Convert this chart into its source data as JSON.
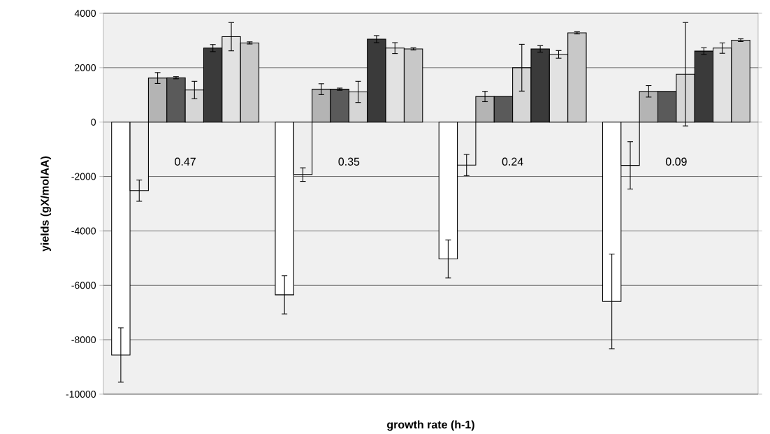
{
  "chart_data": {
    "type": "bar",
    "xlabel": "growth rate (h-1)",
    "ylabel": "yields (gX/molAA)",
    "categories": [
      "0.47",
      "0.35",
      "0.24",
      "0.09"
    ],
    "series": [
      {
        "color": "#ffffff",
        "values": [
          -8560,
          -6350,
          -5030,
          -6590
        ],
        "errors": [
          1000,
          700,
          700,
          1740
        ]
      },
      {
        "color": "#eeeeee",
        "values": [
          -2520,
          -1930,
          -1580,
          -1590
        ],
        "errors": [
          390,
          250,
          390,
          870
        ]
      },
      {
        "color": "#b4b4b4",
        "values": [
          1620,
          1210,
          940,
          1130
        ],
        "errors": [
          200,
          200,
          190,
          210
        ]
      },
      {
        "color": "#5a5a5a",
        "values": [
          1630,
          1210,
          940,
          1130
        ],
        "errors": [
          40,
          40,
          null,
          null
        ]
      },
      {
        "color": "#d6d6d6",
        "values": [
          1180,
          1110,
          2000,
          1760
        ],
        "errors": [
          320,
          390,
          860,
          1900
        ]
      },
      {
        "color": "#3a3a3a",
        "values": [
          2720,
          3050,
          2690,
          2610
        ],
        "errors": [
          130,
          130,
          120,
          120
        ]
      },
      {
        "color": "#e2e2e2",
        "values": [
          3140,
          2720,
          2490,
          2720
        ],
        "errors": [
          520,
          200,
          140,
          190
        ]
      },
      {
        "color": "#c8c8c8",
        "values": [
          2910,
          2690,
          3280,
          3010
        ],
        "errors": [
          40,
          40,
          40,
          50
        ]
      }
    ],
    "ylim": [
      -10000,
      4000
    ],
    "yticks": [
      -10000,
      -8000,
      -6000,
      -4000,
      -2000,
      0,
      2000,
      4000
    ],
    "grid": "y"
  }
}
